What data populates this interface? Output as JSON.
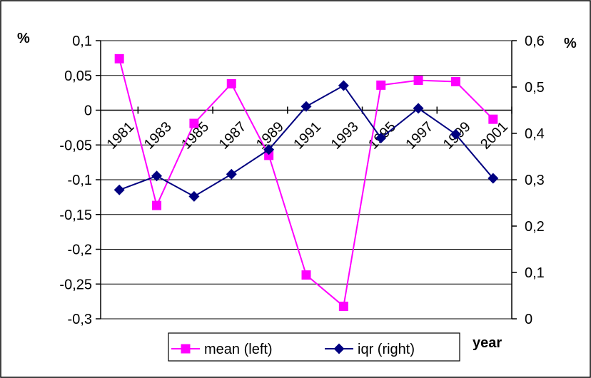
{
  "chart_data": {
    "type": "line",
    "title": "",
    "xlabel": "year",
    "ylabel_left": "%",
    "ylabel_right": "%",
    "x_tick_labels": [
      "1981",
      "1983",
      "1985",
      "1987",
      "1989",
      "1991",
      "1993",
      "1995",
      "1997",
      "1999",
      "2001"
    ],
    "y_left": {
      "min": -0.3,
      "max": 0.1,
      "step": 0.05,
      "tick_labels": [
        "0,1",
        "0,05",
        "0",
        "-0,05",
        "-0,1",
        "-0,15",
        "-0,2",
        "-0,25",
        "-0,3"
      ]
    },
    "y_right": {
      "min": 0,
      "max": 0.6,
      "step": 0.1,
      "tick_labels": [
        "0,6",
        "0,5",
        "0,4",
        "0,3",
        "0,2",
        "0,1",
        "0"
      ]
    },
    "grid": "horizontal",
    "legend_position": "bottom",
    "series": [
      {
        "name": "mean (left)",
        "axis": "left",
        "color": "#ff00ff",
        "marker": "square",
        "values": [
          0.074,
          -0.137,
          -0.019,
          0.038,
          -0.065,
          -0.237,
          -0.282,
          0.036,
          0.043,
          0.041,
          -0.013
        ]
      },
      {
        "name": "iqr (right)",
        "axis": "right",
        "color": "#000080",
        "marker": "diamond",
        "values": [
          0.278,
          0.308,
          0.264,
          0.312,
          0.365,
          0.458,
          0.503,
          0.39,
          0.454,
          0.398,
          0.303
        ]
      }
    ]
  }
}
